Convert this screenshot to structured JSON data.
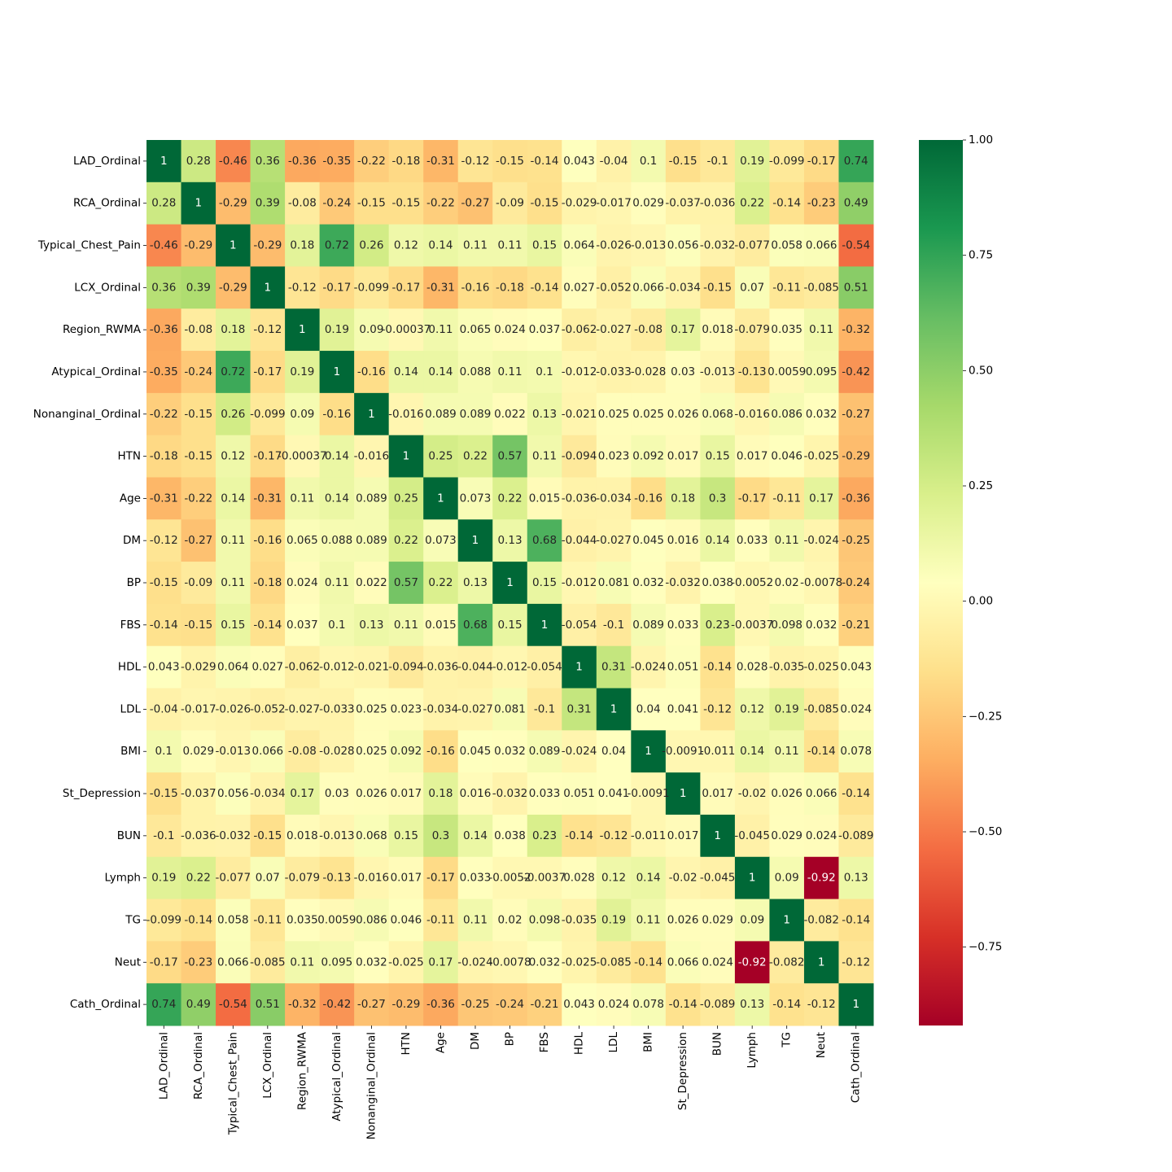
{
  "chart_data": {
    "type": "heatmap",
    "title": "",
    "xlabel": "",
    "ylabel": "",
    "labels": [
      "LAD_Ordinal",
      "RCA_Ordinal",
      "Typical_Chest_Pain",
      "LCX_Ordinal",
      "Region_RWMA",
      "Atypical_Ordinal",
      "Nonanginal_Ordinal",
      "HTN",
      "Age",
      "DM",
      "BP",
      "FBS",
      "HDL",
      "LDL",
      "BMI",
      "St_Depression",
      "BUN",
      "Lymph",
      "TG",
      "Neut",
      "Cath_Ordinal"
    ],
    "values": [
      [
        "1",
        "0.28",
        "-0.46",
        "0.36",
        "-0.36",
        "-0.35",
        "-0.22",
        "-0.18",
        "-0.31",
        "-0.12",
        "-0.15",
        "-0.14",
        "0.043",
        "-0.04",
        "0.1",
        "-0.15",
        "-0.1",
        "0.19",
        "-0.099",
        "-0.17",
        "0.74"
      ],
      [
        "0.28",
        "1",
        "-0.29",
        "0.39",
        "-0.08",
        "-0.24",
        "-0.15",
        "-0.15",
        "-0.22",
        "-0.27",
        "-0.09",
        "-0.15",
        "-0.029",
        "-0.017",
        "0.029",
        "-0.037",
        "-0.036",
        "0.22",
        "-0.14",
        "-0.23",
        "0.49"
      ],
      [
        "-0.46",
        "-0.29",
        "1",
        "-0.29",
        "0.18",
        "0.72",
        "0.26",
        "0.12",
        "0.14",
        "0.11",
        "0.11",
        "0.15",
        "0.064",
        "-0.026",
        "-0.013",
        "0.056",
        "-0.032",
        "-0.077",
        "0.058",
        "0.066",
        "-0.54"
      ],
      [
        "0.36",
        "0.39",
        "-0.29",
        "1",
        "-0.12",
        "-0.17",
        "-0.099",
        "-0.17",
        "-0.31",
        "-0.16",
        "-0.18",
        "-0.14",
        "0.027",
        "-0.052",
        "0.066",
        "-0.034",
        "-0.15",
        "0.07",
        "-0.11",
        "-0.085",
        "0.51"
      ],
      [
        "-0.36",
        "-0.08",
        "0.18",
        "-0.12",
        "1",
        "0.19",
        "0.09",
        "-0.00037",
        "0.11",
        "0.065",
        "0.024",
        "0.037",
        "-0.062",
        "-0.027",
        "-0.08",
        "0.17",
        "0.018",
        "-0.079",
        "0.035",
        "0.11",
        "-0.32"
      ],
      [
        "-0.35",
        "-0.24",
        "0.72",
        "-0.17",
        "0.19",
        "1",
        "-0.16",
        "0.14",
        "0.14",
        "0.088",
        "0.11",
        "0.1",
        "-0.012",
        "-0.033",
        "-0.028",
        "0.03",
        "-0.013",
        "-0.13",
        "0.0059",
        "0.095",
        "-0.42"
      ],
      [
        "-0.22",
        "-0.15",
        "0.26",
        "-0.099",
        "0.09",
        "-0.16",
        "1",
        "-0.016",
        "0.089",
        "0.089",
        "0.022",
        "0.13",
        "-0.021",
        "0.025",
        "0.025",
        "0.026",
        "0.068",
        "-0.016",
        "0.086",
        "0.032",
        "-0.27"
      ],
      [
        "-0.18",
        "-0.15",
        "0.12",
        "-0.17",
        "-0.00037",
        "0.14",
        "-0.016",
        "1",
        "0.25",
        "0.22",
        "0.57",
        "0.11",
        "-0.094",
        "0.023",
        "0.092",
        "0.017",
        "0.15",
        "0.017",
        "0.046",
        "-0.025",
        "-0.29"
      ],
      [
        "-0.31",
        "-0.22",
        "0.14",
        "-0.31",
        "0.11",
        "0.14",
        "0.089",
        "0.25",
        "1",
        "0.073",
        "0.22",
        "0.015",
        "-0.036",
        "-0.034",
        "-0.16",
        "0.18",
        "0.3",
        "-0.17",
        "-0.11",
        "0.17",
        "-0.36"
      ],
      [
        "-0.12",
        "-0.27",
        "0.11",
        "-0.16",
        "0.065",
        "0.088",
        "0.089",
        "0.22",
        "0.073",
        "1",
        "0.13",
        "0.68",
        "-0.044",
        "-0.027",
        "0.045",
        "0.016",
        "0.14",
        "0.033",
        "0.11",
        "-0.024",
        "-0.25"
      ],
      [
        "-0.15",
        "-0.09",
        "0.11",
        "-0.18",
        "0.024",
        "0.11",
        "0.022",
        "0.57",
        "0.22",
        "0.13",
        "1",
        "0.15",
        "-0.012",
        "0.081",
        "0.032",
        "-0.032",
        "0.038",
        "-0.0052",
        "0.02",
        "-0.0078",
        "-0.24"
      ],
      [
        "-0.14",
        "-0.15",
        "0.15",
        "-0.14",
        "0.037",
        "0.1",
        "0.13",
        "0.11",
        "0.015",
        "0.68",
        "0.15",
        "1",
        "-0.054",
        "-0.1",
        "0.089",
        "0.033",
        "0.23",
        "-0.0037",
        "0.098",
        "0.032",
        "-0.21"
      ],
      [
        "0.043",
        "-0.029",
        "0.064",
        "0.027",
        "-0.062",
        "-0.012",
        "-0.021",
        "-0.094",
        "-0.036",
        "-0.044",
        "-0.012",
        "-0.054",
        "1",
        "0.31",
        "-0.024",
        "0.051",
        "-0.14",
        "0.028",
        "-0.035",
        "-0.025",
        "0.043"
      ],
      [
        "-0.04",
        "-0.017",
        "-0.026",
        "-0.052",
        "-0.027",
        "-0.033",
        "0.025",
        "0.023",
        "-0.034",
        "-0.027",
        "0.081",
        "-0.1",
        "0.31",
        "1",
        "0.04",
        "0.041",
        "-0.12",
        "0.12",
        "0.19",
        "-0.085",
        "0.024"
      ],
      [
        "0.1",
        "0.029",
        "-0.013",
        "0.066",
        "-0.08",
        "-0.028",
        "0.025",
        "0.092",
        "-0.16",
        "0.045",
        "0.032",
        "0.089",
        "-0.024",
        "0.04",
        "1",
        "-0.0091",
        "-0.011",
        "0.14",
        "0.11",
        "-0.14",
        "0.078"
      ],
      [
        "-0.15",
        "-0.037",
        "0.056",
        "-0.034",
        "0.17",
        "0.03",
        "0.026",
        "0.017",
        "0.18",
        "0.016",
        "-0.032",
        "0.033",
        "0.051",
        "0.041",
        "-0.0091",
        "1",
        "0.017",
        "-0.02",
        "0.026",
        "0.066",
        "-0.14"
      ],
      [
        "-0.1",
        "-0.036",
        "-0.032",
        "-0.15",
        "0.018",
        "-0.013",
        "0.068",
        "0.15",
        "0.3",
        "0.14",
        "0.038",
        "0.23",
        "-0.14",
        "-0.12",
        "-0.011",
        "0.017",
        "1",
        "-0.045",
        "0.029",
        "0.024",
        "-0.089"
      ],
      [
        "0.19",
        "0.22",
        "-0.077",
        "0.07",
        "-0.079",
        "-0.13",
        "-0.016",
        "0.017",
        "-0.17",
        "0.033",
        "-0.0052",
        "-0.0037",
        "0.028",
        "0.12",
        "0.14",
        "-0.02",
        "-0.045",
        "1",
        "0.09",
        "-0.92",
        "0.13"
      ],
      [
        "-0.099",
        "-0.14",
        "0.058",
        "-0.11",
        "0.035",
        "0.0059",
        "0.086",
        "0.046",
        "-0.11",
        "0.11",
        "0.02",
        "0.098",
        "-0.035",
        "0.19",
        "0.11",
        "0.026",
        "0.029",
        "0.09",
        "1",
        "-0.082",
        "-0.14"
      ],
      [
        "-0.17",
        "-0.23",
        "0.066",
        "-0.085",
        "0.11",
        "0.095",
        "0.032",
        "-0.025",
        "0.17",
        "-0.024",
        "-0.0078",
        "0.032",
        "-0.025",
        "-0.085",
        "-0.14",
        "0.066",
        "0.024",
        "-0.92",
        "-0.082",
        "1",
        "-0.12"
      ],
      [
        "0.74",
        "0.49",
        "-0.54",
        "0.51",
        "-0.32",
        "-0.42",
        "-0.27",
        "-0.29",
        "-0.36",
        "-0.25",
        "-0.24",
        "-0.21",
        "0.043",
        "0.024",
        "0.078",
        "-0.14",
        "-0.089",
        "0.13",
        "-0.14",
        "-0.12",
        "1"
      ]
    ],
    "colormap": "RdYlGn",
    "vmin": -0.92,
    "vmax": 1.0,
    "colorbar": {
      "ticks": [
        "1.00",
        "0.75",
        "0.50",
        "0.25",
        "0.00",
        "−0.25",
        "−0.50",
        "−0.75"
      ],
      "tick_values": [
        1.0,
        0.75,
        0.5,
        0.25,
        0.0,
        -0.25,
        -0.5,
        -0.75
      ]
    },
    "grid": false,
    "legend": "colorbar-right"
  }
}
